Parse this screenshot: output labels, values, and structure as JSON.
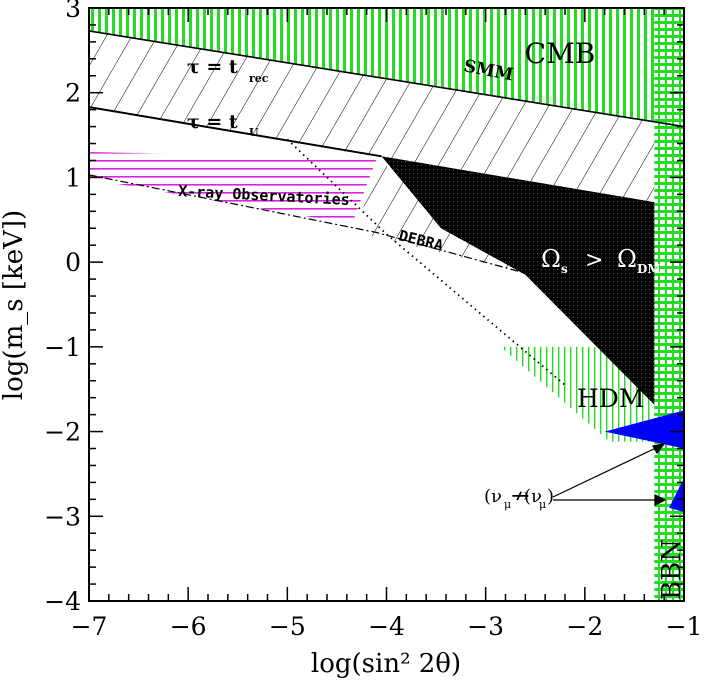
{
  "chart_data": {
    "type": "area",
    "xlabel": "log(sin² 2θ)",
    "ylabel": "log(m_s [keV])",
    "xlim": [
      -7,
      -1
    ],
    "ylim": [
      -4,
      3
    ],
    "x_ticks": [
      "−7",
      "−6",
      "−5",
      "−4",
      "−3",
      "−2",
      "−1"
    ],
    "y_ticks": [
      "−4",
      "−3",
      "−2",
      "−1",
      "0",
      "1",
      "2",
      "3"
    ],
    "colors": {
      "green": "#22dd22",
      "magenta": "#dd22dd",
      "blue": "#0000ff",
      "black": "#000000"
    },
    "regions": [
      {
        "name": "CMB",
        "fill": "green-vertical-hatch",
        "polygon": [
          [
            -7,
            3
          ],
          [
            -1,
            3
          ],
          [
            -1,
            1.6
          ],
          [
            -7,
            2.73
          ]
        ]
      },
      {
        "name": "SMM",
        "fill": "diagonal-hatch",
        "polygon": [
          [
            -7,
            2.73
          ],
          [
            -1,
            1.6
          ],
          [
            -1,
            0.65
          ],
          [
            -4.0,
            1.22
          ],
          [
            -7,
            1.83
          ]
        ]
      },
      {
        "name": "X-ray Observatories",
        "fill": "magenta-horizontal-hatch",
        "polygon": [
          [
            -7,
            1.3
          ],
          [
            -4.1,
            1.22
          ],
          [
            -4.35,
            0.45
          ],
          [
            -7,
            0.98
          ]
        ]
      },
      {
        "name": "DEBRA",
        "fill": "diagonal-hatch",
        "polygon": [
          [
            -4.1,
            1.22
          ],
          [
            -3.9,
            1.05
          ],
          [
            -2.6,
            -0.13
          ],
          [
            -4.3,
            0.35
          ]
        ]
      },
      {
        "name": "Ω_s > Ω_DM",
        "fill": "black",
        "polygon": [
          [
            -4.05,
            1.25
          ],
          [
            -1,
            0.65
          ],
          [
            -1,
            -1.8
          ],
          [
            -1.2,
            -1.8
          ],
          [
            -2.6,
            -0.15
          ],
          [
            -3.45,
            0.4
          ]
        ]
      },
      {
        "name": "HDM",
        "fill": "green-vertical-hatch",
        "polygon": [
          [
            -2.85,
            -1.0
          ],
          [
            -1.3,
            -1.0
          ],
          [
            -1.3,
            -2.12
          ],
          [
            -1.75,
            -2.12
          ]
        ]
      },
      {
        "name": "BBN",
        "fill": "green-grid-hatch",
        "polygon": [
          [
            -1.3,
            3
          ],
          [
            -1,
            3
          ],
          [
            -1,
            -4
          ],
          [
            -1.3,
            -4
          ]
        ]
      },
      {
        "name": "ν_μ ↔ ν_μ",
        "fill": "blue",
        "polygon": [
          [
            -1.0,
            -1.75
          ],
          [
            -1.8,
            -2.0
          ],
          [
            -1.0,
            -2.2
          ]
        ]
      }
    ],
    "lines": [
      {
        "name": "τ = t_rec",
        "style": "solid",
        "points": [
          [
            -7,
            2.73
          ],
          [
            -1,
            1.6
          ]
        ]
      },
      {
        "name": "τ = t_U",
        "style": "solid",
        "points": [
          [
            -7,
            1.83
          ],
          [
            -4.05,
            1.25
          ]
        ]
      },
      {
        "name": "X-ray boundary",
        "style": "dash-dot",
        "points": [
          [
            -7,
            1.03
          ],
          [
            -4.1,
            0.35
          ],
          [
            -2.6,
            -0.13
          ]
        ]
      },
      {
        "name": "dotted",
        "style": "dotted",
        "points": [
          [
            -5.0,
            1.45
          ],
          [
            -4.0,
            0.33
          ],
          [
            -2.2,
            -1.45
          ]
        ]
      }
    ],
    "annotations": {
      "cmb": "CMB",
      "smm": "SMM",
      "tau_rec_left": "τ = t",
      "tau_rec_sub": "rec",
      "tau_u_left": "τ = t",
      "tau_u_sub": "U",
      "xray": "X-ray Observatories",
      "debra": "DEBRA",
      "omega": "Ω",
      "omega_s": "s",
      "omega_gt": ">",
      "omega_dm": "DM",
      "hdm": "HDM",
      "bbn": "BBN",
      "nu": "(ν",
      "nu_mu": "μ",
      "nu_arrow": "↛",
      "nu_close": ")"
    }
  }
}
